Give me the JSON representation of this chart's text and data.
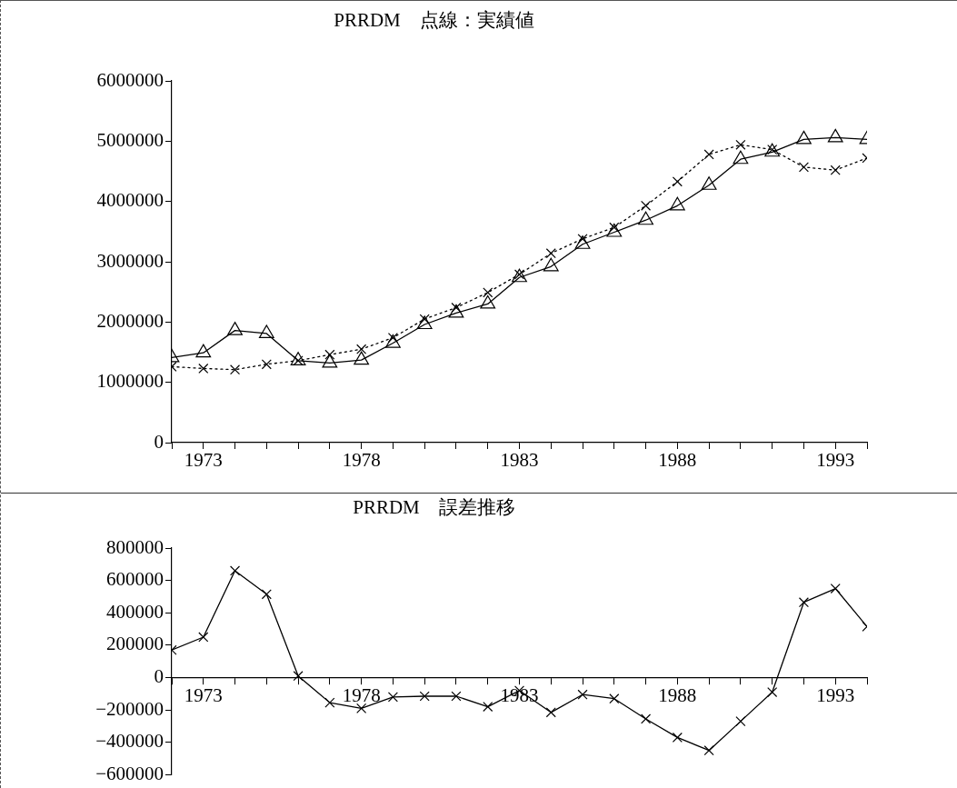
{
  "chart_data": [
    {
      "type": "line",
      "title": "PRRDM　点線：実績値",
      "x": [
        1972,
        1973,
        1974,
        1975,
        1976,
        1977,
        1978,
        1979,
        1980,
        1981,
        1982,
        1983,
        1984,
        1985,
        1986,
        1987,
        1988,
        1989,
        1990,
        1991,
        1992,
        1993,
        1994
      ],
      "series": [
        {
          "color": "#000000",
          "marker": "triangle",
          "line_style": "solid",
          "values": [
            1410000,
            1490000,
            1860000,
            1810000,
            1360000,
            1320000,
            1370000,
            1650000,
            1960000,
            2150000,
            2300000,
            2740000,
            2920000,
            3290000,
            3490000,
            3690000,
            3930000,
            4270000,
            4700000,
            4820000,
            5030000,
            5060000,
            5030000
          ]
        },
        {
          "color": "#000000",
          "marker": "cross",
          "line_style": "dotted",
          "values": [
            1260000,
            1230000,
            1210000,
            1300000,
            1360000,
            1460000,
            1550000,
            1740000,
            2050000,
            2240000,
            2490000,
            2790000,
            3140000,
            3380000,
            3570000,
            3930000,
            4330000,
            4780000,
            4940000,
            4860000,
            4570000,
            4520000,
            4720000
          ]
        }
      ],
      "xlim": [
        1972,
        1994
      ],
      "xticks": [
        {
          "value": 1972,
          "label": null
        },
        1973,
        {
          "value": 1974,
          "label": null
        },
        {
          "value": 1975,
          "label": null
        },
        {
          "value": 1976,
          "label": null
        },
        {
          "value": 1977,
          "label": null
        },
        1978,
        {
          "value": 1979,
          "label": null
        },
        {
          "value": 1980,
          "label": null
        },
        {
          "value": 1981,
          "label": null
        },
        {
          "value": 1982,
          "label": null
        },
        1983,
        {
          "value": 1984,
          "label": null
        },
        {
          "value": 1985,
          "label": null
        },
        {
          "value": 1986,
          "label": null
        },
        {
          "value": 1987,
          "label": null
        },
        1988,
        {
          "value": 1989,
          "label": null
        },
        {
          "value": 1990,
          "label": null
        },
        {
          "value": 1991,
          "label": null
        },
        {
          "value": 1992,
          "label": null
        },
        1993,
        {
          "value": 1994,
          "label": null
        }
      ],
      "ylim": [
        0,
        6000000
      ],
      "yticks": [
        0,
        1000000,
        2000000,
        3000000,
        4000000,
        5000000,
        6000000
      ]
    },
    {
      "type": "line",
      "title": "PRRDM　誤差推移",
      "x": [
        1972,
        1973,
        1974,
        1975,
        1976,
        1977,
        1978,
        1979,
        1980,
        1981,
        1982,
        1983,
        1984,
        1985,
        1986,
        1987,
        1988,
        1989,
        1990,
        1991,
        1992,
        1993,
        1994
      ],
      "series": [
        {
          "color": "#000000",
          "marker": "cross",
          "line_style": "solid",
          "values": [
            170000,
            250000,
            660000,
            515000,
            10000,
            -155000,
            -190000,
            -120000,
            -115000,
            -115000,
            -180000,
            -80000,
            -215000,
            -105000,
            -130000,
            -255000,
            -370000,
            -450000,
            -270000,
            -90000,
            465000,
            550000,
            315000
          ]
        }
      ],
      "xlim": [
        1972,
        1994
      ],
      "xticks": [
        {
          "value": 1972,
          "label": null
        },
        1973,
        {
          "value": 1974,
          "label": null
        },
        {
          "value": 1975,
          "label": null
        },
        {
          "value": 1976,
          "label": null
        },
        {
          "value": 1977,
          "label": null
        },
        1978,
        {
          "value": 1979,
          "label": null
        },
        {
          "value": 1980,
          "label": null
        },
        {
          "value": 1981,
          "label": null
        },
        {
          "value": 1982,
          "label": null
        },
        1983,
        {
          "value": 1984,
          "label": null
        },
        {
          "value": 1985,
          "label": null
        },
        {
          "value": 1986,
          "label": null
        },
        {
          "value": 1987,
          "label": null
        },
        1988,
        {
          "value": 1989,
          "label": null
        },
        {
          "value": 1990,
          "label": null
        },
        {
          "value": 1991,
          "label": null
        },
        {
          "value": 1992,
          "label": null
        },
        1993,
        {
          "value": 1994,
          "label": null
        }
      ],
      "ylim": [
        -600000,
        800000
      ],
      "yticks": [
        {
          "value": -600000,
          "label": "−600000"
        },
        {
          "value": -400000,
          "label": "−400000"
        },
        {
          "value": -200000,
          "label": "−200000"
        },
        0,
        200000,
        400000,
        600000,
        800000
      ]
    }
  ]
}
